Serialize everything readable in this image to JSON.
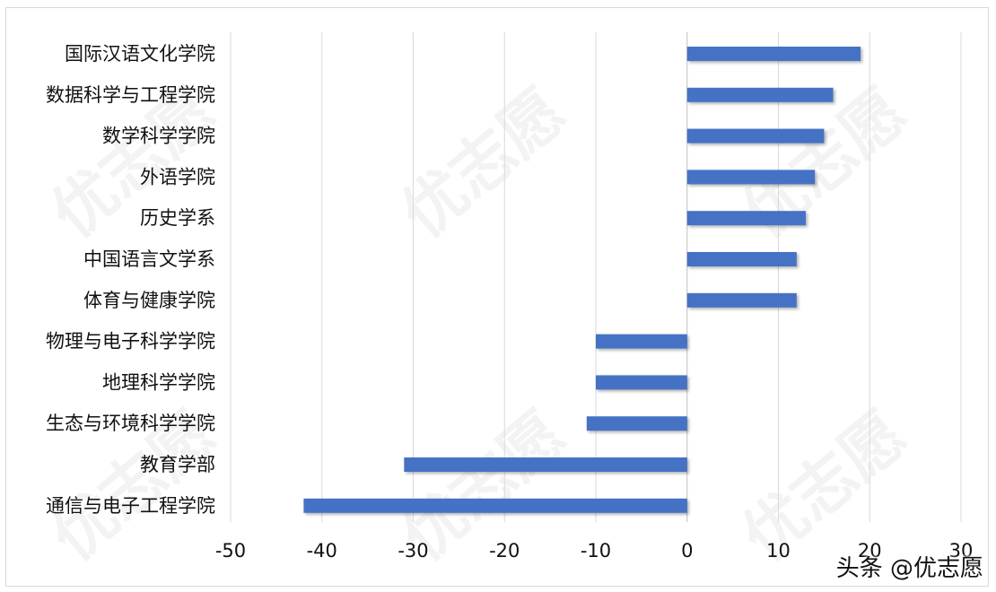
{
  "watermark": "优志愿",
  "credit": "头条 @优志愿",
  "colors": {
    "bar": "#4472C4",
    "grid": "#d9d9d9",
    "axis": "#bfbfbf"
  },
  "chart_data": {
    "type": "bar",
    "orientation": "horizontal",
    "title": "",
    "xlabel": "",
    "ylabel": "",
    "xlim": [
      -50,
      30
    ],
    "xticks": [
      -50,
      -40,
      -30,
      -20,
      -10,
      0,
      10,
      20,
      30
    ],
    "grid": true,
    "categories": [
      "国际汉语文化学院",
      "数据科学与工程学院",
      "数学科学学院",
      "外语学院",
      "历史学系",
      "中国语言文学系",
      "体育与健康学院",
      "物理与电子科学学院",
      "地理科学学院",
      "生态与环境科学学院",
      "教育学部",
      "通信与电子工程学院"
    ],
    "values": [
      19,
      16,
      15,
      14,
      13,
      12,
      12,
      -10,
      -10,
      -11,
      -31,
      -42
    ]
  }
}
